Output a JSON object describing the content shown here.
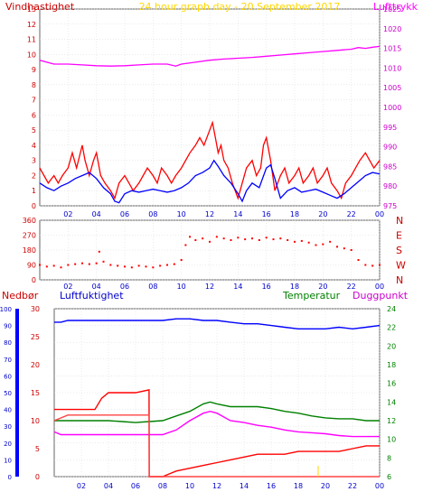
{
  "chart_data": [
    {
      "type": "line",
      "title": "24 hour graph day - 20.September 2017",
      "left_axis_label": "Vindhastighet",
      "right_axis_label": "Lufttrykk",
      "x_ticks": [
        "02",
        "04",
        "06",
        "08",
        "10",
        "12",
        "14",
        "16",
        "18",
        "20",
        "22",
        "00"
      ],
      "y_left_ticks": [
        "0",
        "1",
        "2",
        "3",
        "4",
        "5",
        "6",
        "7",
        "8",
        "9",
        "10",
        "11",
        "12",
        "13"
      ],
      "y_right_ticks": [
        "975",
        "980",
        "985",
        "990",
        "995",
        "1000",
        "1005",
        "1010",
        "1015",
        "1020",
        "1025"
      ],
      "ylim_left": [
        0,
        13
      ],
      "ylim_right": [
        975,
        1025
      ],
      "xlim": [
        0,
        24
      ],
      "colors": {
        "gust": "#ff0000",
        "wind": "#0000ff",
        "pressure": "#ff00ff",
        "title": "#ffd700",
        "left_label": "#cc0000",
        "right_label": "#ff00ff"
      },
      "series": [
        {
          "id": "pressure",
          "axis": "right",
          "color": "#ff00ff",
          "x": [
            0,
            0.5,
            1,
            2,
            3,
            4,
            5,
            6,
            7,
            8,
            9,
            9.6,
            10,
            11,
            12,
            13,
            14,
            15,
            16,
            17,
            18,
            19,
            20,
            21,
            22,
            22.5,
            23,
            23.5,
            24
          ],
          "y": [
            1012,
            1011.5,
            1011,
            1011,
            1010.8,
            1010.6,
            1010.5,
            1010.6,
            1010.8,
            1011,
            1011,
            1010.5,
            1011,
            1011.5,
            1012,
            1012.3,
            1012.5,
            1012.7,
            1013,
            1013.3,
            1013.6,
            1013.9,
            1014.2,
            1014.5,
            1014.8,
            1015.2,
            1015,
            1015.3,
            1015.5
          ]
        },
        {
          "id": "gust",
          "axis": "left",
          "color": "#ff0000",
          "x": [
            0,
            0.3,
            0.6,
            1,
            1.3,
            1.6,
            2,
            2.3,
            2.6,
            3,
            3.2,
            3.5,
            3.8,
            4,
            4.3,
            4.6,
            5,
            5.3,
            5.6,
            6,
            6.3,
            6.6,
            7,
            7.3,
            7.6,
            8,
            8.3,
            8.6,
            9,
            9.3,
            9.6,
            10,
            10.3,
            10.6,
            11,
            11.3,
            11.6,
            12,
            12.2,
            12.4,
            12.6,
            12.8,
            13,
            13.3,
            13.6,
            14,
            14.3,
            14.6,
            15,
            15.3,
            15.6,
            15.8,
            16,
            16.3,
            16.6,
            17,
            17.3,
            17.6,
            18,
            18.3,
            18.6,
            19,
            19.3,
            19.6,
            20,
            20.3,
            20.6,
            21,
            21.3,
            21.6,
            22,
            22.3,
            22.6,
            23,
            23.3,
            23.6,
            24
          ],
          "y": [
            2.5,
            2,
            1.5,
            2,
            1.5,
            2,
            2.5,
            3.5,
            2.5,
            4,
            3,
            2,
            3,
            3.5,
            2,
            1.5,
            1,
            0.5,
            1.5,
            2,
            1.5,
            1,
            1.5,
            2,
            2.5,
            2,
            1.5,
            2.5,
            2,
            1.5,
            2,
            2.5,
            3,
            3.5,
            4,
            4.5,
            4,
            5,
            5.5,
            4.5,
            3.5,
            4,
            3,
            2.5,
            1.5,
            0.5,
            1.5,
            2.5,
            3,
            2,
            2.5,
            4,
            4.5,
            3,
            1,
            2,
            2.5,
            1.5,
            2,
            2.5,
            1.5,
            2,
            2.5,
            1.5,
            2,
            2.5,
            1.5,
            1,
            0.5,
            1.5,
            2,
            2.5,
            3,
            3.5,
            3,
            2.5,
            3
          ]
        },
        {
          "id": "wind",
          "axis": "left",
          "color": "#0000ff",
          "x": [
            0,
            0.5,
            1,
            1.5,
            2,
            2.5,
            3,
            3.5,
            4,
            4.5,
            5,
            5.3,
            5.6,
            6,
            6.5,
            7,
            7.5,
            8,
            8.5,
            9,
            9.5,
            10,
            10.5,
            11,
            11.5,
            12,
            12.3,
            12.6,
            13,
            13.5,
            14,
            14.3,
            14.6,
            15,
            15.5,
            16,
            16.3,
            16.6,
            17,
            17.5,
            18,
            18.5,
            19,
            19.5,
            20,
            20.5,
            21,
            21.5,
            22,
            22.5,
            23,
            23.5,
            24
          ],
          "y": [
            1.5,
            1.2,
            1,
            1.3,
            1.5,
            1.8,
            2,
            2.2,
            1.8,
            1.2,
            0.8,
            0.3,
            0.2,
            0.8,
            1,
            0.9,
            1,
            1.1,
            1,
            0.9,
            1,
            1.2,
            1.5,
            2,
            2.2,
            2.5,
            3,
            2.6,
            2,
            1.5,
            0.8,
            0.3,
            1,
            1.5,
            1.2,
            2.5,
            2.7,
            1.8,
            0.5,
            1,
            1.2,
            0.9,
            1,
            1.1,
            0.9,
            0.7,
            0.5,
            0.8,
            1.2,
            1.6,
            2,
            2.2,
            2.1
          ]
        }
      ]
    },
    {
      "type": "scatter",
      "title": "",
      "x_ticks": [
        "02",
        "04",
        "06",
        "08",
        "10",
        "12",
        "14",
        "16",
        "18",
        "20",
        "22",
        "00"
      ],
      "y_ticks": [
        "0",
        "90",
        "180",
        "270",
        "360"
      ],
      "compass_labels": [
        "N",
        "W",
        "S",
        "E",
        "N"
      ],
      "ylim": [
        0,
        360
      ],
      "xlim": [
        0,
        24
      ],
      "color": "#ff0000",
      "note": "wind direction",
      "x": [
        0,
        0.5,
        1,
        1.5,
        2,
        2.5,
        3,
        3.5,
        4,
        4.2,
        4.5,
        5,
        5.5,
        6,
        6.5,
        7,
        7.5,
        8,
        8.5,
        9,
        9.5,
        10,
        10.3,
        10.6,
        11,
        11.5,
        12,
        12.5,
        13,
        13.5,
        14,
        14.5,
        15,
        15.5,
        16,
        16.5,
        17,
        17.5,
        18,
        18.5,
        19,
        19.5,
        20,
        20.5,
        21,
        21.5,
        22,
        22.5,
        23,
        23.5,
        24
      ],
      "y": [
        90,
        80,
        85,
        75,
        90,
        95,
        100,
        95,
        100,
        170,
        110,
        90,
        85,
        80,
        75,
        85,
        80,
        75,
        85,
        90,
        95,
        120,
        210,
        260,
        240,
        250,
        230,
        260,
        250,
        240,
        255,
        245,
        250,
        240,
        255,
        245,
        250,
        240,
        230,
        235,
        225,
        210,
        215,
        230,
        200,
        190,
        180,
        120,
        90,
        85,
        90
      ]
    },
    {
      "type": "line",
      "title": "",
      "series_labels": [
        "Nedbør",
        "Luftfuktighet",
        "Temperatur",
        "Duggpunkt"
      ],
      "x_ticks": [
        "02",
        "04",
        "06",
        "08",
        "10",
        "12",
        "14",
        "16",
        "18",
        "20",
        "22",
        "00"
      ],
      "y_nedbor_ticks": [
        "0",
        "10",
        "20",
        "30",
        "40",
        "50",
        "60",
        "70",
        "80",
        "90",
        "100"
      ],
      "y_luft_ticks": [
        "0",
        "5",
        "10",
        "15",
        "20",
        "25",
        "30"
      ],
      "y_temp_ticks": [
        "6",
        "8",
        "10",
        "12",
        "14",
        "16",
        "18",
        "20",
        "22",
        "24"
      ],
      "ylim_luft": [
        0,
        30
      ],
      "ylim_temp": [
        6,
        24
      ],
      "xlim": [
        0,
        24
      ],
      "colors": {
        "nedbor": "#ff0000",
        "luftfuktighet": "#0000ff",
        "temperatur": "#008000",
        "duggpunkt": "#ff00ff",
        "precip_rate": "#ff4444"
      },
      "series": [
        {
          "id": "humidity",
          "axis": "nedbor",
          "color": "#0000ff",
          "x": [
            0,
            0.5,
            1,
            2,
            3,
            4,
            5,
            6,
            7,
            8,
            9,
            10,
            11,
            12,
            13,
            14,
            15,
            16,
            17,
            18,
            19,
            20,
            21,
            22,
            23,
            24
          ],
          "y": [
            92,
            92,
            93,
            93,
            93,
            93,
            93,
            93,
            93,
            93,
            94,
            94,
            93,
            93,
            92,
            91,
            91,
            90,
            89,
            88,
            88,
            88,
            89,
            88,
            89,
            90
          ]
        },
        {
          "id": "temperature",
          "axis": "temp",
          "color": "#008000",
          "x": [
            0,
            0.5,
            1,
            2,
            3,
            4,
            5,
            6,
            7,
            8,
            9,
            10,
            11,
            11.5,
            12,
            13,
            14,
            15,
            16,
            17,
            18,
            19,
            20,
            21,
            22,
            23,
            24
          ],
          "y": [
            12,
            12,
            12,
            12,
            12,
            12,
            11.9,
            11.8,
            11.9,
            12,
            12.5,
            13,
            13.8,
            14,
            13.8,
            13.5,
            13.5,
            13.5,
            13.3,
            13,
            12.8,
            12.5,
            12.3,
            12.2,
            12.2,
            12,
            12
          ]
        },
        {
          "id": "dewpoint",
          "axis": "temp",
          "color": "#ff00ff",
          "x": [
            0,
            0.5,
            1,
            2,
            3,
            4,
            5,
            6,
            7,
            8,
            9,
            10,
            11,
            11.5,
            12,
            13,
            14,
            15,
            16,
            17,
            18,
            19,
            20,
            21,
            22,
            23,
            24
          ],
          "y": [
            10.8,
            10.5,
            10.5,
            10.5,
            10.5,
            10.5,
            10.5,
            10.5,
            10.5,
            10.5,
            11,
            12,
            12.8,
            13,
            12.8,
            12,
            11.8,
            11.5,
            11.3,
            11,
            10.8,
            10.7,
            10.6,
            10.4,
            10.3,
            10.3,
            10.3
          ]
        },
        {
          "id": "precipitation",
          "axis": "luft",
          "color": "#ff0000",
          "x": [
            0,
            0.5,
            1,
            2,
            3,
            3.5,
            4,
            5,
            6,
            6.99,
            7.01,
            8,
            8.5,
            9,
            10,
            11,
            12,
            13,
            14,
            15,
            16,
            17,
            18,
            19,
            20,
            21,
            22,
            23,
            24
          ],
          "y": [
            12,
            12,
            12,
            12,
            12,
            14,
            15,
            15,
            15,
            15.5,
            0,
            0,
            0.5,
            1,
            1.5,
            2,
            2.5,
            3,
            3.5,
            4,
            4,
            4,
            4.5,
            4.5,
            4.5,
            4.5,
            5,
            5.5,
            5.5
          ]
        },
        {
          "id": "precip_rate",
          "axis": "luft",
          "color": "#ff4444",
          "x": [
            0,
            1,
            2,
            3,
            4,
            5,
            6,
            7,
            7.01,
            24
          ],
          "y": [
            10,
            11,
            11,
            11,
            11,
            11,
            11,
            11,
            0,
            0
          ]
        }
      ]
    }
  ]
}
